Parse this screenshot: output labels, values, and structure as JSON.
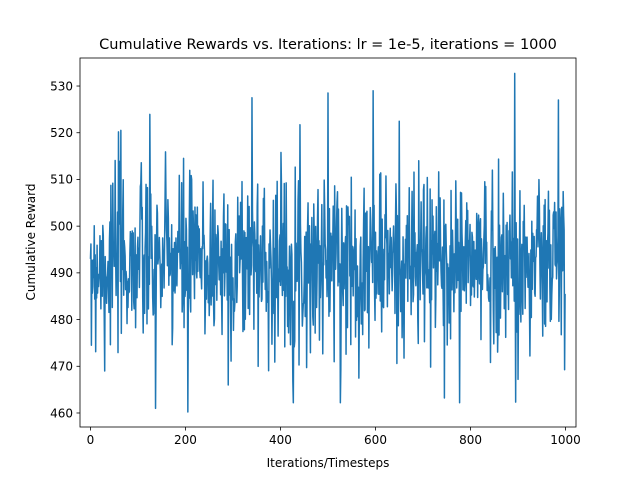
{
  "chart_data": {
    "type": "line",
    "title": "Cumulative Rewards vs. Iterations: lr = 1e-5, iterations = 1000",
    "xlabel": "Iterations/Timesteps",
    "ylabel": "Cumulative Reward",
    "xlim": [
      -22,
      1022
    ],
    "ylim": [
      457,
      536
    ],
    "xticks": [
      0,
      200,
      400,
      600,
      800,
      1000
    ],
    "xtick_labels": [
      "0",
      "200",
      "400",
      "600",
      "800",
      "1000"
    ],
    "yticks": [
      460,
      470,
      480,
      490,
      500,
      510,
      520,
      530
    ],
    "ytick_labels": [
      "460",
      "470",
      "480",
      "490",
      "500",
      "510",
      "520",
      "530"
    ],
    "grid": false,
    "series": [
      {
        "name": "cumulative_reward",
        "color": "#1f77b4",
        "x_start": 0,
        "x_step": 1,
        "count": 1000,
        "mean": 492.5,
        "min": 460.2,
        "max": 532.7,
        "notable_points": [
          {
            "x": 0,
            "y": 493
          },
          {
            "x": 2,
            "y": 474.5
          },
          {
            "x": 30,
            "y": 469
          },
          {
            "x": 64,
            "y": 520.5
          },
          {
            "x": 137,
            "y": 461
          },
          {
            "x": 205,
            "y": 460.2
          },
          {
            "x": 290,
            "y": 466
          },
          {
            "x": 340,
            "y": 527.5
          },
          {
            "x": 500,
            "y": 528.5
          },
          {
            "x": 595,
            "y": 529
          },
          {
            "x": 745,
            "y": 463.2
          },
          {
            "x": 893,
            "y": 532.7
          },
          {
            "x": 900,
            "y": 467.2
          },
          {
            "x": 985,
            "y": 527
          },
          {
            "x": 999,
            "y": 485.5
          }
        ]
      }
    ]
  }
}
